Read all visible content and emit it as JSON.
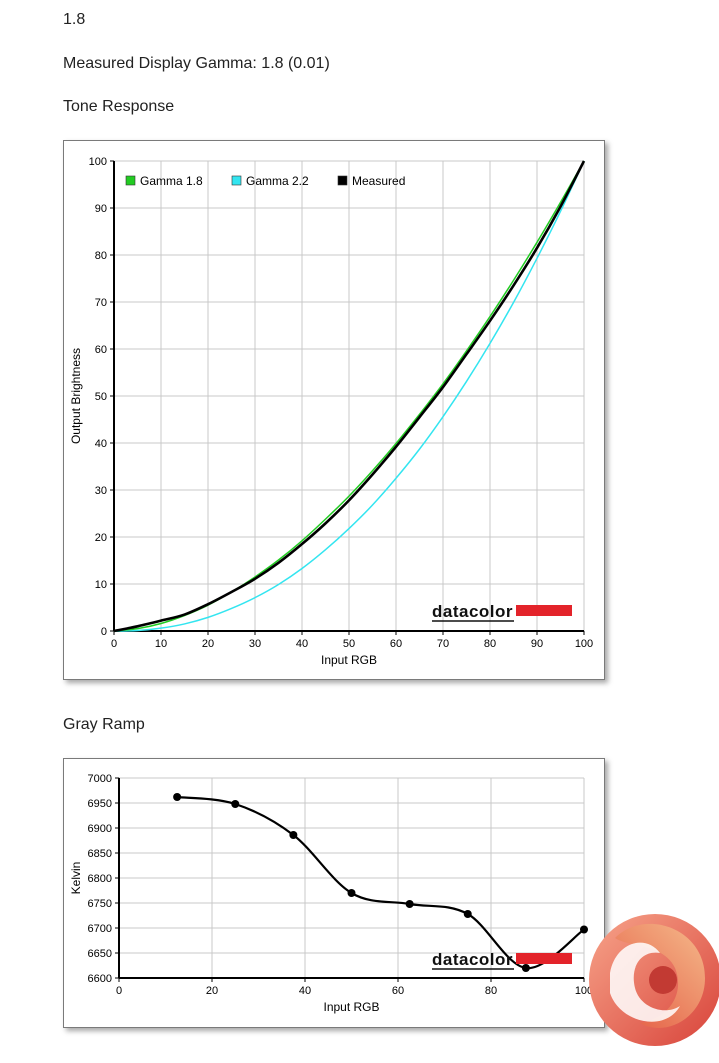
{
  "header": {
    "gamma_value": "1.8",
    "measured_text": "Measured Display Gamma: 1.8 (0.01)",
    "tone_title": "Tone Response",
    "gray_title": "Gray Ramp"
  },
  "colors": {
    "gamma18": "#22cc22",
    "gamma22": "#33e5f0",
    "measured": "#000000",
    "grid": "#c8c8c8",
    "brand_red": "#e3232a"
  },
  "chart_data": [
    {
      "type": "line",
      "xlabel": "Input RGB",
      "ylabel": "Output Brightness",
      "xlim": [
        0,
        100
      ],
      "ylim": [
        0,
        100
      ],
      "xticks": [
        0,
        10,
        20,
        30,
        40,
        50,
        60,
        70,
        80,
        90,
        100
      ],
      "yticks": [
        0,
        10,
        20,
        30,
        40,
        50,
        60,
        70,
        80,
        90,
        100
      ],
      "grid": true,
      "legend_position": "top-left",
      "brand_label": "datacolor",
      "series": [
        {
          "name": "Gamma 1.8",
          "x": [
            0,
            5,
            10,
            15,
            20,
            25,
            30,
            35,
            40,
            45,
            50,
            55,
            60,
            65,
            70,
            75,
            80,
            85,
            90,
            95,
            100
          ],
          "y": [
            0,
            0.5,
            1.6,
            3.3,
            5.5,
            8.3,
            11.5,
            15.1,
            19.2,
            23.8,
            28.7,
            34.1,
            39.9,
            46.1,
            52.6,
            59.6,
            66.9,
            74.6,
            82.7,
            91.2,
            100
          ]
        },
        {
          "name": "Gamma 2.2",
          "x": [
            0,
            5,
            10,
            15,
            20,
            25,
            30,
            35,
            40,
            45,
            50,
            55,
            60,
            65,
            70,
            75,
            80,
            85,
            90,
            95,
            100
          ],
          "y": [
            0,
            0.1,
            0.6,
            1.5,
            2.9,
            4.8,
            7.1,
            9.9,
            13.3,
            17.3,
            21.8,
            26.8,
            32.5,
            38.7,
            45.6,
            53.1,
            61.2,
            69.9,
            79.3,
            89.3,
            100
          ]
        },
        {
          "name": "Measured",
          "x": [
            0,
            5,
            10,
            15,
            20,
            25,
            30,
            35,
            40,
            45,
            50,
            55,
            60,
            65,
            70,
            75,
            80,
            85,
            90,
            95,
            100
          ],
          "y": [
            0,
            1.0,
            2.2,
            3.5,
            5.7,
            8.3,
            11.1,
            14.5,
            18.5,
            22.9,
            27.8,
            33.3,
            39.2,
            45.5,
            51.9,
            58.9,
            66.0,
            73.5,
            81.5,
            90.3,
            100
          ]
        }
      ]
    },
    {
      "type": "line",
      "xlabel": "Input RGB",
      "ylabel": "Kelvin",
      "xlim": [
        0,
        100
      ],
      "ylim": [
        6600,
        7000
      ],
      "xticks": [
        0,
        20,
        40,
        60,
        80,
        100
      ],
      "yticks": [
        6600,
        6650,
        6700,
        6750,
        6800,
        6850,
        6900,
        6950,
        7000
      ],
      "grid": true,
      "brand_label": "datacolor",
      "series": [
        {
          "name": "Kelvin",
          "x": [
            12.5,
            25,
            37.5,
            50,
            62.5,
            75,
            87.5,
            100
          ],
          "y": [
            6962,
            6948,
            6886,
            6770,
            6748,
            6728,
            6620,
            6697
          ]
        }
      ]
    }
  ]
}
